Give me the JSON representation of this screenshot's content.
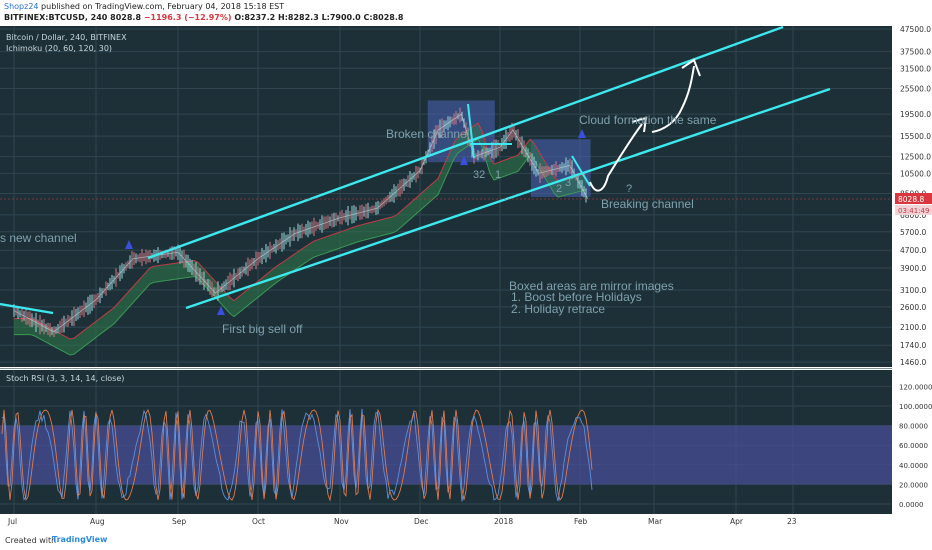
{
  "header": {
    "author": "Shopz24",
    "published": "published on TradingView.com, February 04, 2018 15:18 EST",
    "symbol": "BITFINEX:BTCUSD, 240",
    "last": "8028.8",
    "change": "−1196.3 (−12.97%)",
    "open": "O:8237.2",
    "high": "H:8282.3",
    "low": "L:7900.0",
    "close": "C:8028.8"
  },
  "chart_data": [
    {
      "type": "line",
      "title": "Bitcoin / Dollar, 240, BITFINEX",
      "subtitle": "Ichimoku (20, 60, 120, 30)",
      "y_scale": "log",
      "x_ticks": [
        "Jul",
        "Aug",
        "Sep",
        "Oct",
        "Nov",
        "Dec",
        "2018",
        "Feb",
        "Mar",
        "Apr",
        "23"
      ],
      "y_ticks": [
        "47500.0",
        "37500.0",
        "31500.0",
        "25500.0",
        "19500.0",
        "15500.0",
        "12500.0",
        "10500.0",
        "8500.0",
        "6800.0",
        "5700.0",
        "4700.0",
        "3900.0",
        "3100.0",
        "2600.0",
        "2100.0",
        "1740.0",
        "1460.0"
      ],
      "price_label": "8028.8",
      "timer_label": "03:41:49",
      "series": [
        {
          "name": "",
          "x": [
            "2017-07-01",
            "2017-07-16",
            "2017-08-01",
            "2017-08-15",
            "2017-09-01",
            "2017-09-15",
            "2017-10-01",
            "2017-10-15",
            "2017-11-01",
            "2017-11-15",
            "2017-12-01",
            "2017-12-08",
            "2017-12-17",
            "2017-12-22",
            "2018-01-01",
            "2018-01-06",
            "2018-01-16",
            "2018-01-28",
            "2018-02-04"
          ],
          "y": [
            2500,
            2000,
            2800,
            4300,
            4600,
            3000,
            4300,
            5600,
            6600,
            7300,
            10800,
            16500,
            19500,
            12500,
            13800,
            16500,
            10500,
            11400,
            8028.8
          ]
        }
      ],
      "annotations": [
        "s new channel",
        "Broken channel",
        "Cloud formation the same",
        "Breaking channel",
        "First big sell off",
        "Boxed areas are mirror images",
        "1. Boost before Holidays",
        "2. Holiday retrace",
        "32",
        "1",
        "2",
        "3",
        "?"
      ]
    },
    {
      "type": "line",
      "title": "Stoch RSI (3, 3, 14, 14, close)",
      "y_ticks": [
        "120.0000",
        "100.0000",
        "80.0000",
        "60.0000",
        "40.0000",
        "20.0000",
        "0.0000"
      ],
      "band": [
        20,
        80
      ]
    }
  ],
  "colors": {
    "bg": "#1d3038",
    "grid": "#2f4651",
    "channel": "#3de8ee",
    "annot": "#7fa1ad",
    "box": "#4a62b8",
    "cloud_up": "#2e7a4a",
    "cloud_dn": "#7a2b33",
    "rsi_k": "#5b8fdc",
    "rsi_d": "#e07a4c",
    "band": "#4b4f9c"
  },
  "footer": {
    "created": "Created with",
    "brand": "TradingView"
  }
}
